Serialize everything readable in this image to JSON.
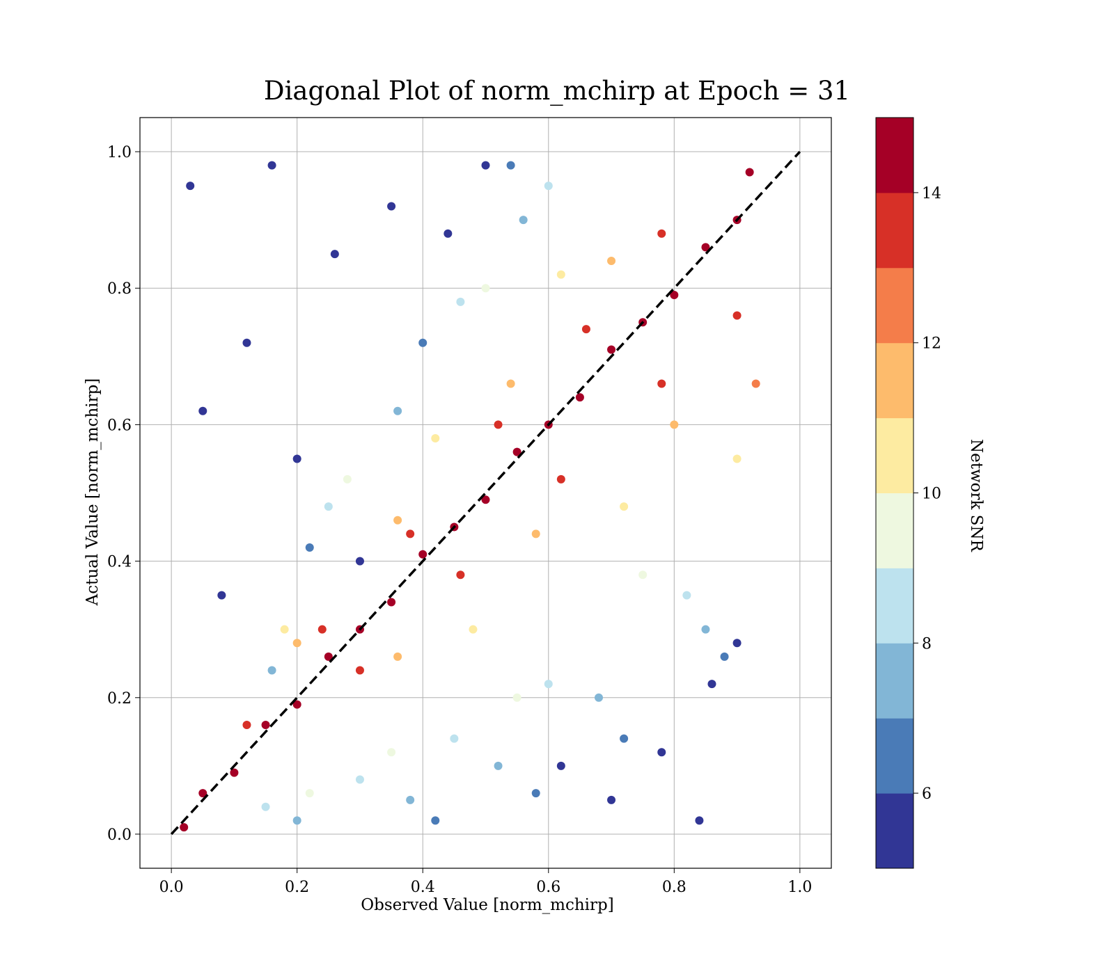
{
  "chart_data": {
    "type": "scatter",
    "title": "Diagonal Plot of norm_mchirp at Epoch = 31",
    "xlabel": "Observed Value [norm_mchirp]",
    "ylabel": "Actual Value [norm_mchirp]",
    "xlim": [
      -0.05,
      1.05
    ],
    "ylim": [
      -0.05,
      1.05
    ],
    "xticks": [
      "0.0",
      "0.2",
      "0.4",
      "0.6",
      "0.8",
      "1.0"
    ],
    "yticks": [
      "0.0",
      "0.2",
      "0.4",
      "0.6",
      "0.8",
      "1.0"
    ],
    "grid": true,
    "reference_line": {
      "x": [
        0,
        1
      ],
      "y": [
        0,
        1
      ],
      "style": "dashed",
      "color": "#000000"
    },
    "colorbar": {
      "label": "Network SNR",
      "range": [
        5,
        15
      ],
      "ticks": [
        "6",
        "8",
        "10",
        "12",
        "14"
      ],
      "tick_values": [
        6,
        8,
        10,
        12,
        14
      ],
      "bins": [
        {
          "from": 5,
          "to": 6,
          "color": "#313695"
        },
        {
          "from": 6,
          "to": 7,
          "color": "#4a7bb7"
        },
        {
          "from": 7,
          "to": 8,
          "color": "#82b6d6"
        },
        {
          "from": 8,
          "to": 9,
          "color": "#bde2ee"
        },
        {
          "from": 9,
          "to": 10,
          "color": "#eef8e0"
        },
        {
          "from": 10,
          "to": 11,
          "color": "#fdeba1"
        },
        {
          "from": 11,
          "to": 12,
          "color": "#fdbb6c"
        },
        {
          "from": 12,
          "to": 13,
          "color": "#f47d4a"
        },
        {
          "from": 13,
          "to": 14,
          "color": "#d73027"
        },
        {
          "from": 14,
          "to": 15,
          "color": "#a50026"
        }
      ]
    },
    "points": [
      {
        "x": 0.02,
        "y": 0.01,
        "snr": 15
      },
      {
        "x": 0.05,
        "y": 0.06,
        "snr": 15
      },
      {
        "x": 0.1,
        "y": 0.09,
        "snr": 15
      },
      {
        "x": 0.15,
        "y": 0.16,
        "snr": 15
      },
      {
        "x": 0.2,
        "y": 0.19,
        "snr": 15
      },
      {
        "x": 0.25,
        "y": 0.26,
        "snr": 15
      },
      {
        "x": 0.3,
        "y": 0.3,
        "snr": 15
      },
      {
        "x": 0.35,
        "y": 0.34,
        "snr": 15
      },
      {
        "x": 0.4,
        "y": 0.41,
        "snr": 15
      },
      {
        "x": 0.45,
        "y": 0.45,
        "snr": 15
      },
      {
        "x": 0.5,
        "y": 0.49,
        "snr": 15
      },
      {
        "x": 0.55,
        "y": 0.56,
        "snr": 15
      },
      {
        "x": 0.6,
        "y": 0.6,
        "snr": 15
      },
      {
        "x": 0.65,
        "y": 0.64,
        "snr": 15
      },
      {
        "x": 0.7,
        "y": 0.71,
        "snr": 15
      },
      {
        "x": 0.75,
        "y": 0.75,
        "snr": 15
      },
      {
        "x": 0.8,
        "y": 0.79,
        "snr": 15
      },
      {
        "x": 0.85,
        "y": 0.86,
        "snr": 15
      },
      {
        "x": 0.9,
        "y": 0.9,
        "snr": 15
      },
      {
        "x": 0.92,
        "y": 0.97,
        "snr": 15
      },
      {
        "x": 0.12,
        "y": 0.16,
        "snr": 13.5
      },
      {
        "x": 0.24,
        "y": 0.3,
        "snr": 13.5
      },
      {
        "x": 0.38,
        "y": 0.44,
        "snr": 13.5
      },
      {
        "x": 0.52,
        "y": 0.6,
        "snr": 13.5
      },
      {
        "x": 0.66,
        "y": 0.74,
        "snr": 13.5
      },
      {
        "x": 0.78,
        "y": 0.88,
        "snr": 13.5
      },
      {
        "x": 0.3,
        "y": 0.24,
        "snr": 13.5
      },
      {
        "x": 0.46,
        "y": 0.38,
        "snr": 13.5
      },
      {
        "x": 0.62,
        "y": 0.52,
        "snr": 13.5
      },
      {
        "x": 0.78,
        "y": 0.66,
        "snr": 13.5
      },
      {
        "x": 0.9,
        "y": 0.76,
        "snr": 13.5
      },
      {
        "x": 0.2,
        "y": 0.28,
        "snr": 11.5
      },
      {
        "x": 0.36,
        "y": 0.46,
        "snr": 11.5
      },
      {
        "x": 0.54,
        "y": 0.66,
        "snr": 11.5
      },
      {
        "x": 0.7,
        "y": 0.84,
        "snr": 11.5
      },
      {
        "x": 0.36,
        "y": 0.26,
        "snr": 11.5
      },
      {
        "x": 0.58,
        "y": 0.44,
        "snr": 11.5
      },
      {
        "x": 0.8,
        "y": 0.6,
        "snr": 11.5
      },
      {
        "x": 0.93,
        "y": 0.66,
        "snr": 12.5
      },
      {
        "x": 0.18,
        "y": 0.3,
        "snr": 10.5
      },
      {
        "x": 0.42,
        "y": 0.58,
        "snr": 10.5
      },
      {
        "x": 0.62,
        "y": 0.82,
        "snr": 10.5
      },
      {
        "x": 0.48,
        "y": 0.3,
        "snr": 10.5
      },
      {
        "x": 0.72,
        "y": 0.48,
        "snr": 10.5
      },
      {
        "x": 0.9,
        "y": 0.55,
        "snr": 10.5
      },
      {
        "x": 0.22,
        "y": 0.06,
        "snr": 9.5
      },
      {
        "x": 0.35,
        "y": 0.12,
        "snr": 9.5
      },
      {
        "x": 0.55,
        "y": 0.2,
        "snr": 9.5
      },
      {
        "x": 0.75,
        "y": 0.38,
        "snr": 9.5
      },
      {
        "x": 0.28,
        "y": 0.52,
        "snr": 9.5
      },
      {
        "x": 0.5,
        "y": 0.8,
        "snr": 9.5
      },
      {
        "x": 0.15,
        "y": 0.04,
        "snr": 8.5
      },
      {
        "x": 0.3,
        "y": 0.08,
        "snr": 8.5
      },
      {
        "x": 0.45,
        "y": 0.14,
        "snr": 8.5
      },
      {
        "x": 0.6,
        "y": 0.22,
        "snr": 8.5
      },
      {
        "x": 0.82,
        "y": 0.35,
        "snr": 8.5
      },
      {
        "x": 0.25,
        "y": 0.48,
        "snr": 8.5
      },
      {
        "x": 0.46,
        "y": 0.78,
        "snr": 8.5
      },
      {
        "x": 0.6,
        "y": 0.95,
        "snr": 8.5
      },
      {
        "x": 0.2,
        "y": 0.02,
        "snr": 7.5
      },
      {
        "x": 0.38,
        "y": 0.05,
        "snr": 7.5
      },
      {
        "x": 0.52,
        "y": 0.1,
        "snr": 7.5
      },
      {
        "x": 0.68,
        "y": 0.2,
        "snr": 7.5
      },
      {
        "x": 0.85,
        "y": 0.3,
        "snr": 7.5
      },
      {
        "x": 0.16,
        "y": 0.24,
        "snr": 7.5
      },
      {
        "x": 0.36,
        "y": 0.62,
        "snr": 7.5
      },
      {
        "x": 0.56,
        "y": 0.9,
        "snr": 7.5
      },
      {
        "x": 0.42,
        "y": 0.02,
        "snr": 6.5
      },
      {
        "x": 0.58,
        "y": 0.06,
        "snr": 6.5
      },
      {
        "x": 0.72,
        "y": 0.14,
        "snr": 6.5
      },
      {
        "x": 0.88,
        "y": 0.26,
        "snr": 6.5
      },
      {
        "x": 0.22,
        "y": 0.42,
        "snr": 6.5
      },
      {
        "x": 0.4,
        "y": 0.72,
        "snr": 6.5
      },
      {
        "x": 0.54,
        "y": 0.98,
        "snr": 6.5
      },
      {
        "x": 0.03,
        "y": 0.95,
        "snr": 5.5
      },
      {
        "x": 0.05,
        "y": 0.62,
        "snr": 5.5
      },
      {
        "x": 0.08,
        "y": 0.35,
        "snr": 5.5
      },
      {
        "x": 0.12,
        "y": 0.72,
        "snr": 5.5
      },
      {
        "x": 0.16,
        "y": 0.98,
        "snr": 5.5
      },
      {
        "x": 0.2,
        "y": 0.55,
        "snr": 5.5
      },
      {
        "x": 0.26,
        "y": 0.85,
        "snr": 5.5
      },
      {
        "x": 0.3,
        "y": 0.4,
        "snr": 5.5
      },
      {
        "x": 0.35,
        "y": 0.92,
        "snr": 5.5
      },
      {
        "x": 0.44,
        "y": 0.88,
        "snr": 5.5
      },
      {
        "x": 0.5,
        "y": 0.98,
        "snr": 5.5
      },
      {
        "x": 0.62,
        "y": 0.1,
        "snr": 5.5
      },
      {
        "x": 0.7,
        "y": 0.05,
        "snr": 5.5
      },
      {
        "x": 0.78,
        "y": 0.12,
        "snr": 5.5
      },
      {
        "x": 0.84,
        "y": 0.02,
        "snr": 5.5
      },
      {
        "x": 0.86,
        "y": 0.22,
        "snr": 5.5
      },
      {
        "x": 0.9,
        "y": 0.28,
        "snr": 5.5
      }
    ]
  }
}
